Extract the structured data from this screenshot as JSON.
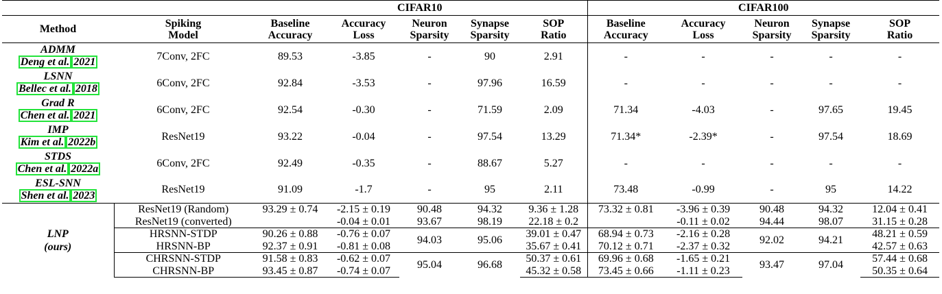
{
  "header": {
    "cifar10": "CIFAR10",
    "cifar100": "CIFAR100",
    "method": "Method",
    "spiking_model": [
      "Spiking",
      "Model"
    ],
    "cols10": [
      [
        "Baseline",
        "Accuracy"
      ],
      [
        "Accuracy",
        "Loss"
      ],
      [
        "Neuron",
        "Sparsity"
      ],
      [
        "Synapse",
        "Sparsity"
      ],
      [
        "SOP",
        "Ratio"
      ]
    ],
    "cols100": [
      [
        "Baseline",
        "Accuracy"
      ],
      [
        "Accuracy",
        "Loss"
      ],
      [
        "Neuron",
        "Sparsity"
      ],
      [
        "Synapse",
        "Sparsity"
      ],
      [
        "SOP",
        "Ratio"
      ]
    ]
  },
  "prior": [
    {
      "name": "ADMM",
      "cite_author": "Deng et al.",
      "cite_year": "2021",
      "model": "7Conv, 2FC",
      "c10": [
        "89.53",
        "-3.85",
        "-",
        "90",
        "2.91"
      ],
      "c100": [
        "-",
        "-",
        "-",
        "-",
        "-"
      ]
    },
    {
      "name": "LSNN",
      "cite_author": "Bellec et al.",
      "cite_year": "2018",
      "model": "6Conv, 2FC",
      "c10": [
        "92.84",
        "-3.53",
        "-",
        "97.96",
        "16.59"
      ],
      "c100": [
        "-",
        "-",
        "-",
        "-",
        "-"
      ]
    },
    {
      "name": "Grad R",
      "cite_author": "Chen et al.",
      "cite_year": "2021",
      "model": "6Conv, 2FC",
      "c10": [
        "92.54",
        "-0.30",
        "-",
        "71.59",
        "2.09"
      ],
      "c100": [
        "71.34",
        "-4.03",
        "-",
        "97.65",
        "19.45"
      ]
    },
    {
      "name": "IMP",
      "cite_author": "Kim et al.",
      "cite_year": "2022b",
      "model": "ResNet19",
      "c10": [
        "93.22",
        "-0.04",
        "-",
        "97.54",
        "13.29"
      ],
      "c100": [
        "71.34*",
        "-2.39*",
        "-",
        "97.54",
        "18.69"
      ]
    },
    {
      "name": "STDS",
      "cite_author": "Chen et al.",
      "cite_year": "2022a",
      "model": "6Conv, 2FC",
      "c10": [
        "92.49",
        "-0.35",
        "-",
        "88.67",
        "5.27"
      ],
      "c100": [
        "-",
        "-",
        "-",
        "-",
        "-"
      ]
    },
    {
      "name": "ESL-SNN",
      "cite_author": "Shen et al.",
      "cite_year": "2023",
      "model": "ResNet19",
      "c10": [
        "91.09",
        "-1.7",
        "-",
        "95",
        "2.11"
      ],
      "c100": [
        "73.48",
        "-0.99",
        "-",
        "95",
        "14.22"
      ]
    }
  ],
  "lnp": {
    "name": "LNP",
    "note": "(ours)",
    "groups": [
      {
        "rows": [
          {
            "model": "ResNet19 (Random)",
            "c10": [
              "93.29 ± 0.74",
              "-2.15 ± 0.19",
              "90.48",
              "94.32",
              "9.36 ± 1.28"
            ],
            "c100": [
              "73.32 ± 0.81",
              "-3.96 ± 0.39",
              "90.48",
              "94.32",
              "12.04 ± 0.41"
            ]
          },
          {
            "model": "ResNet19 (converted)",
            "c10": [
              "",
              "-0.04 ± 0.01",
              "93.67",
              "98.19",
              "22.18 ± 0.2"
            ],
            "c100": [
              "",
              "-0.11 ± 0.02",
              "94.44",
              "98.07",
              "31.15 ± 0.28"
            ]
          }
        ]
      },
      {
        "shared": {
          "c10_neuron": "94.03",
          "c10_synapse": "95.06",
          "c100_neuron": "92.02",
          "c100_synapse": "94.21"
        },
        "rows": [
          {
            "model": "HRSNN-STDP",
            "c10": [
              "90.26 ± 0.88",
              "-0.76 ± 0.07",
              "39.01 ± 0.47"
            ],
            "c100": [
              "68.94 ± 0.73",
              "-2.16 ± 0.28",
              "48.21 ± 0.59"
            ]
          },
          {
            "model": "HRSNN-BP",
            "c10": [
              "92.37 ± 0.91",
              "-0.81 ± 0.08",
              "35.67 ± 0.41"
            ],
            "c100": [
              "70.12 ± 0.71",
              "-2.37 ± 0.32",
              "42.57 ± 0.63"
            ]
          }
        ]
      },
      {
        "shared": {
          "c10_neuron": "95.04",
          "c10_synapse": "96.68",
          "c100_neuron": "93.47",
          "c100_synapse": "97.04"
        },
        "rows": [
          {
            "model": "CHRSNN-STDP",
            "c10": [
              "91.58 ± 0.83",
              "-0.62 ± 0.07",
              "50.37 ± 0.61"
            ],
            "c100": [
              "69.96 ± 0.68",
              "-1.65 ± 0.21",
              "57.44 ± 0.68"
            ]
          },
          {
            "model": "CHRSNN-BP",
            "c10": [
              "93.45 ± 0.87",
              "-0.74 ± 0.07",
              "45.32 ± 0.58"
            ],
            "c100": [
              "73.45 ± 0.66",
              "-1.11 ± 0.23",
              "50.35 ± 0.64"
            ]
          }
        ]
      }
    ]
  }
}
